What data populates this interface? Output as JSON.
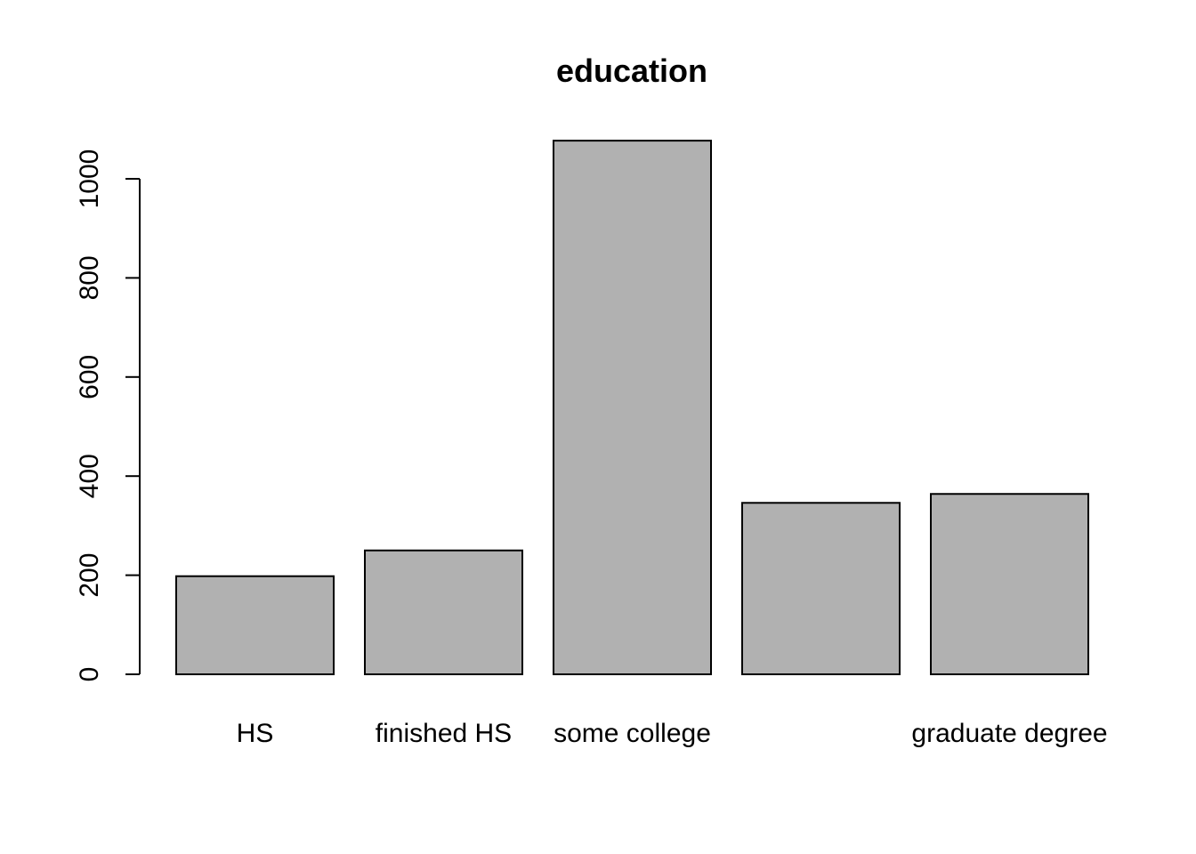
{
  "chart_data": {
    "type": "bar",
    "title": "education",
    "categories": [
      "HS",
      "finished HS",
      "some college",
      "",
      "graduate degree"
    ],
    "values": [
      198,
      250,
      1077,
      346,
      364
    ],
    "xlabel": "",
    "ylabel": "",
    "ylim": [
      0,
      1077
    ],
    "yticks": [
      "0",
      "200",
      "400",
      "600",
      "800",
      "1000"
    ],
    "bar_color": "#b1b1b1",
    "border_color": "#000000",
    "grid": false
  }
}
